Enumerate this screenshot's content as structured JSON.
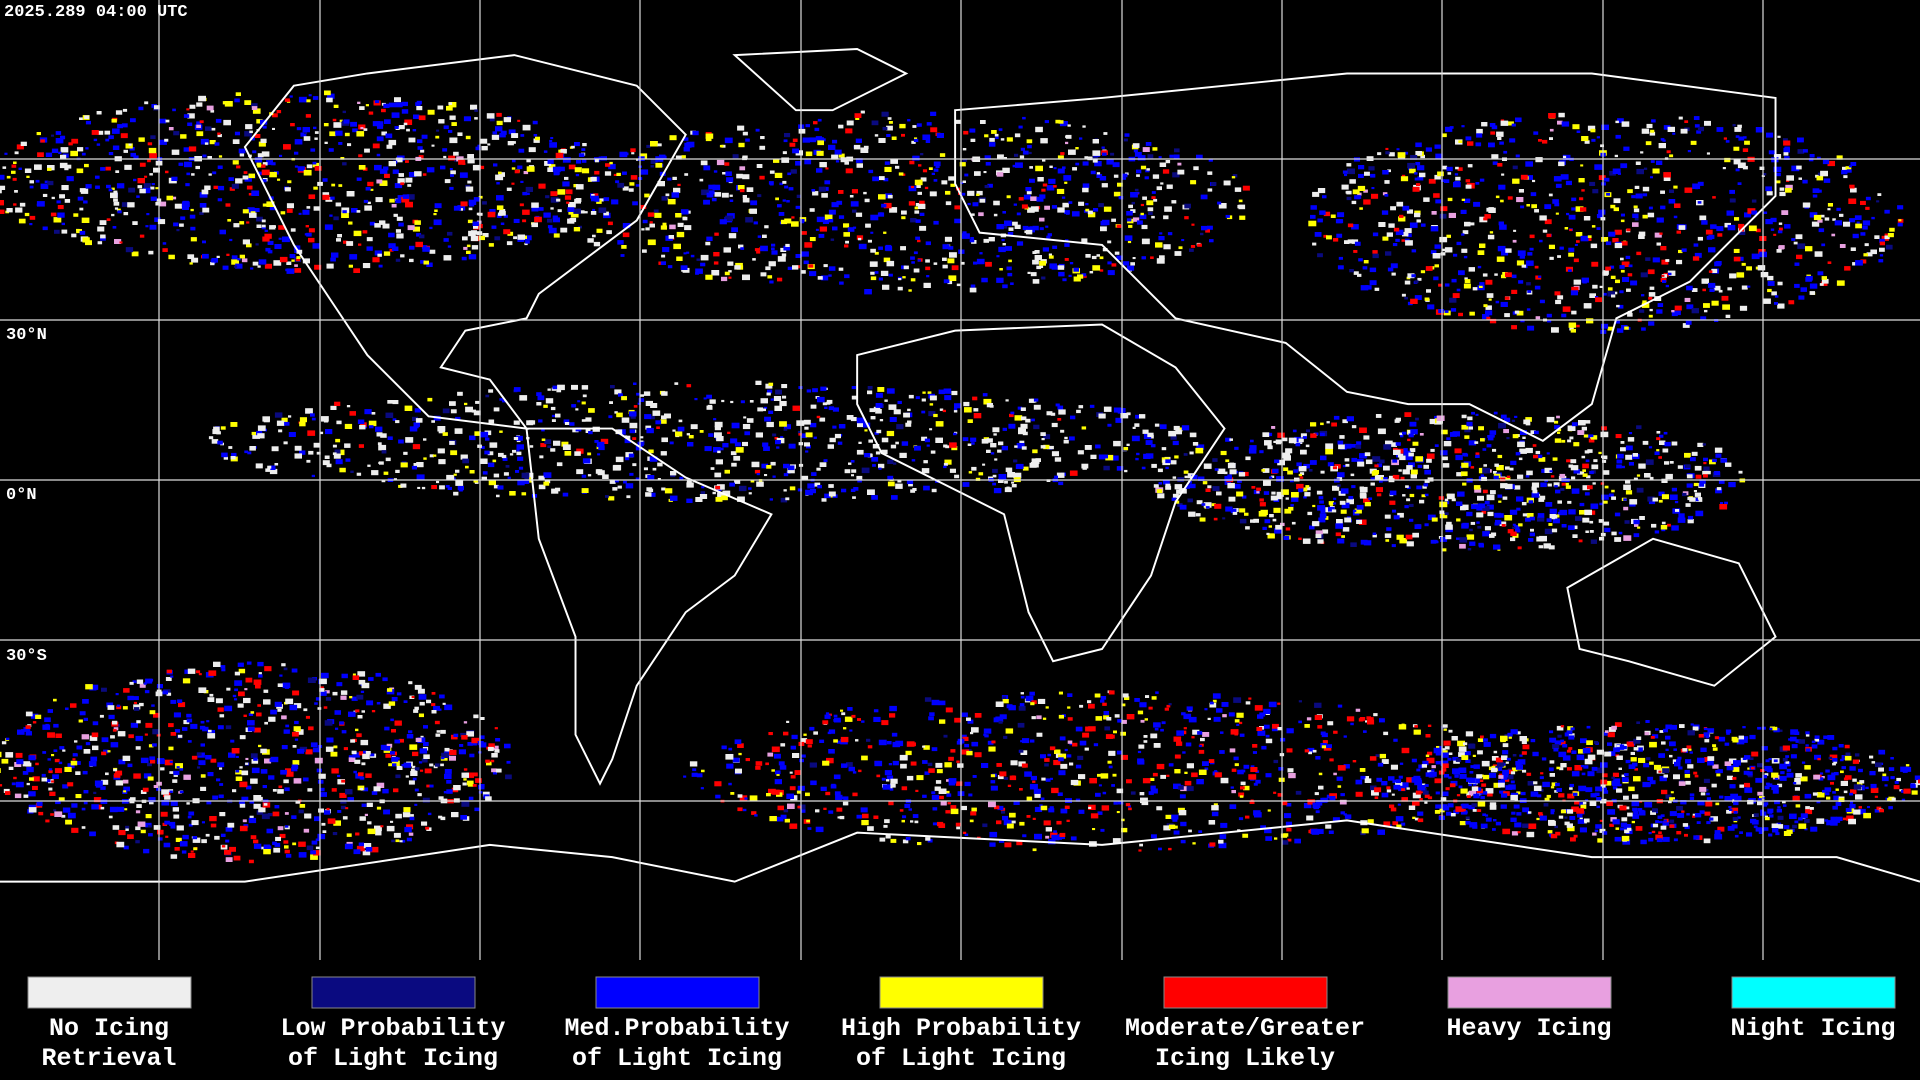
{
  "timestamp": "2025.289 04:00 UTC",
  "latitude_labels": [
    "30°N",
    "0°N",
    "30°S"
  ],
  "legend": [
    {
      "label": [
        "No Icing",
        "Retrieval"
      ],
      "color": "#eeeeee"
    },
    {
      "label": [
        "Low Probability",
        "of Light Icing"
      ],
      "color": "#0a0a80"
    },
    {
      "label": [
        "Med.Probability",
        "of Light Icing"
      ],
      "color": "#0000ff"
    },
    {
      "label": [
        "High Probability",
        "of Light Icing"
      ],
      "color": "#ffff00"
    },
    {
      "label": [
        "Moderate/Greater",
        "Icing Likely"
      ],
      "color": "#ff0000"
    },
    {
      "label": [
        "Heavy Icing",
        ""
      ],
      "color": "#e8a0e0"
    },
    {
      "label": [
        "Night Icing",
        ""
      ],
      "color": "#00ffff"
    }
  ]
}
